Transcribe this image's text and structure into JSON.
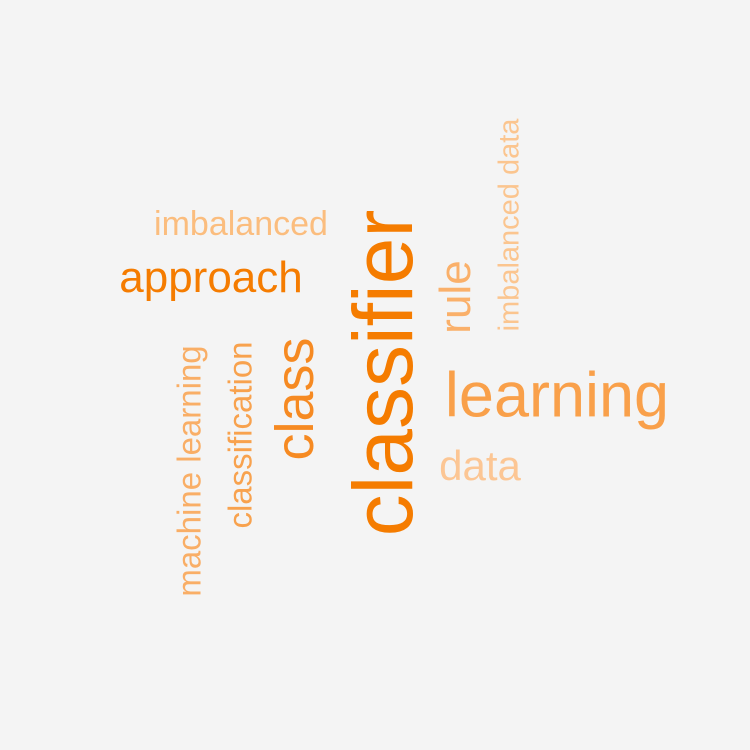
{
  "words": [
    {
      "id": "classifier",
      "text": "classifier",
      "color": "#f57c00"
    },
    {
      "id": "learning",
      "text": "learning",
      "color": "#f9a04a"
    },
    {
      "id": "class",
      "text": "class",
      "color": "#f68a22"
    },
    {
      "id": "approach",
      "text": "approach",
      "color": "#f57c00"
    },
    {
      "id": "rule",
      "text": "rule",
      "color": "#fab06a"
    },
    {
      "id": "imbalanced",
      "text": "imbalanced",
      "color": "#fbbd7e"
    },
    {
      "id": "imbalanced-data",
      "text": "imbalanced data",
      "color": "#fbc58f"
    },
    {
      "id": "classification",
      "text": "classification",
      "color": "#f8a24e"
    },
    {
      "id": "machine-learning",
      "text": "machine learning",
      "color": "#f9ae66"
    },
    {
      "id": "data",
      "text": "data",
      "color": "#fcc694"
    }
  ]
}
